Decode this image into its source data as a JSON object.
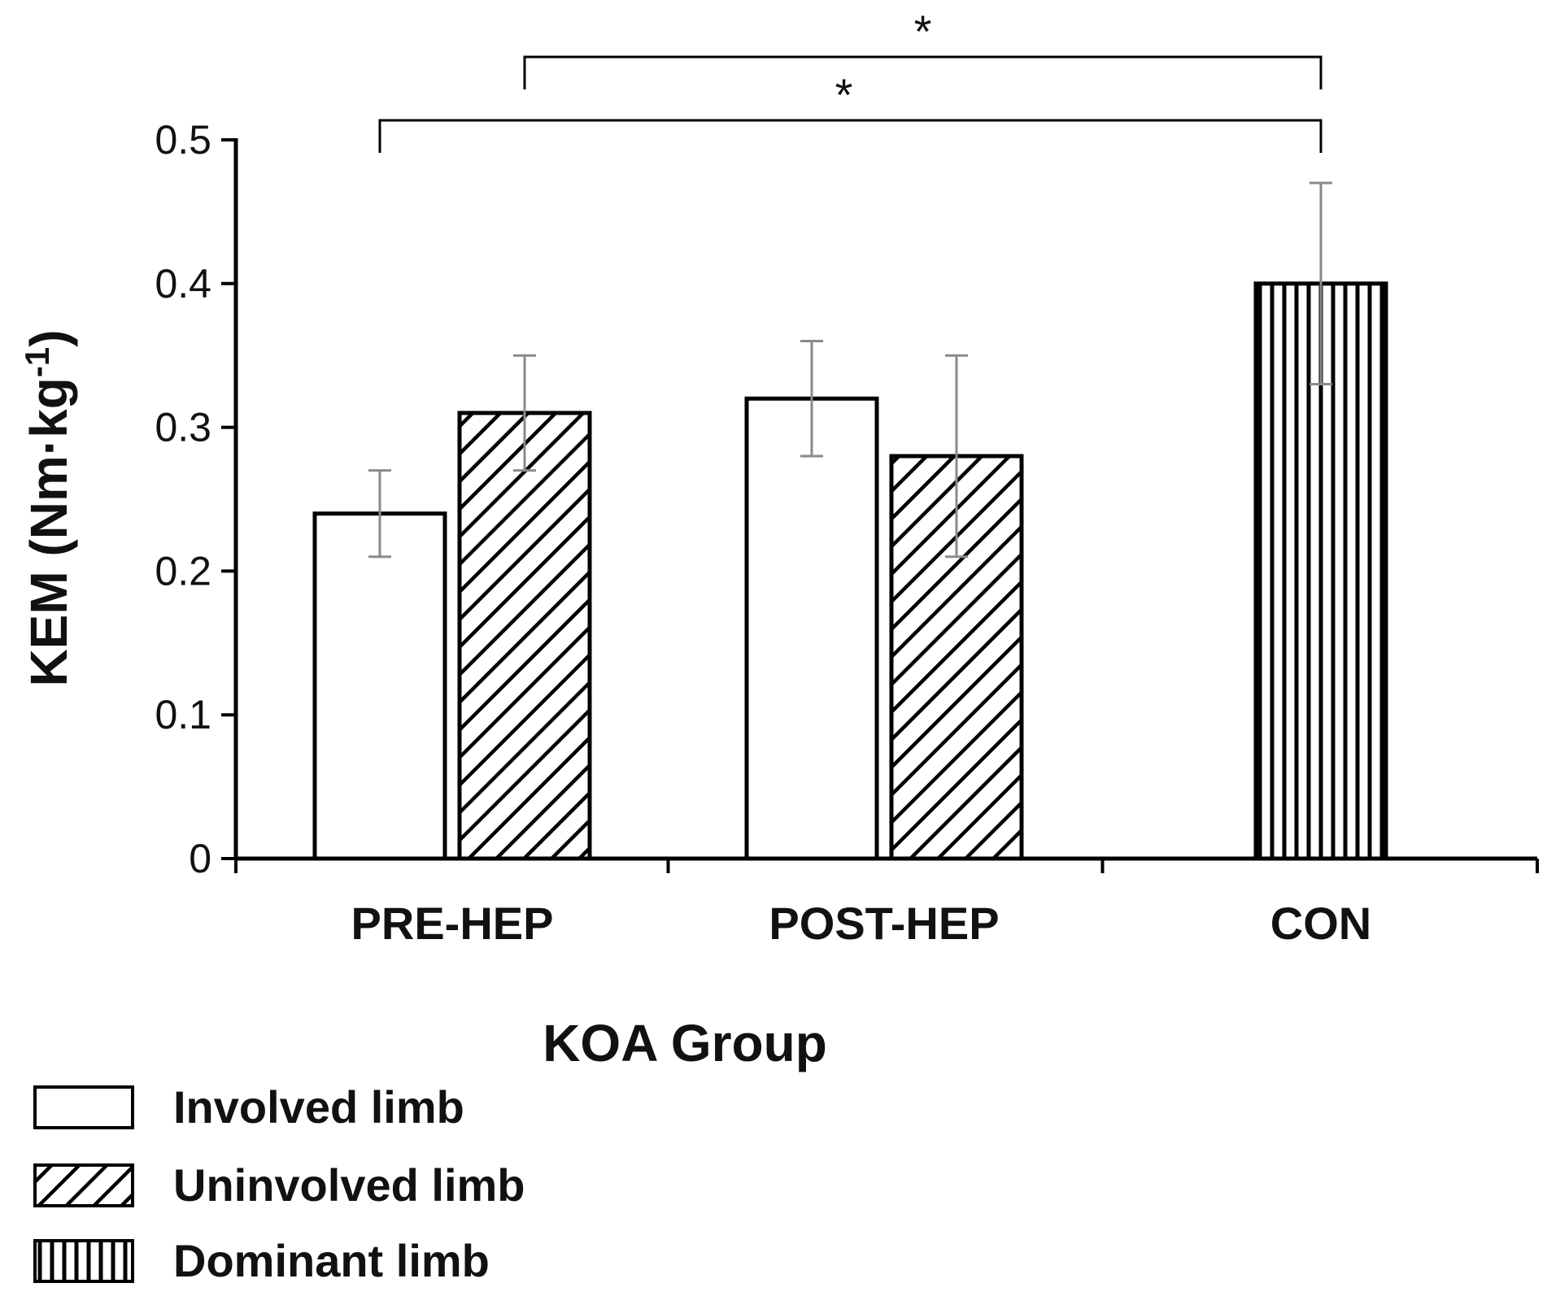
{
  "chart_data": {
    "type": "bar",
    "title": "",
    "xlabel": "KOA Group",
    "ylabel": "KEM (Nm·kg",
    "ylabel_superscript": "-1",
    "ylabel_close": ")",
    "ylim": [
      0,
      0.5
    ],
    "yticks": [
      0,
      0.1,
      0.2,
      0.3,
      0.4,
      0.5
    ],
    "ytick_labels": [
      "0",
      "0.1",
      "0.2",
      "0.3",
      "0.4",
      "0.5"
    ],
    "categories": [
      "PRE-HEP",
      "POST-HEP",
      "CON"
    ],
    "series": [
      {
        "name": "Involved limb",
        "pattern": "none",
        "values": [
          0.24,
          0.32,
          null
        ],
        "errors": [
          0.03,
          0.04,
          null
        ]
      },
      {
        "name": "Uninvolved limb",
        "pattern": "diagonal",
        "values": [
          0.31,
          0.28,
          null
        ],
        "errors": [
          0.04,
          0.07,
          null
        ]
      },
      {
        "name": "Dominant limb",
        "pattern": "vertical",
        "values": [
          null,
          null,
          0.4
        ],
        "errors": [
          null,
          null,
          0.07
        ]
      }
    ],
    "significance": [
      {
        "from": "PRE-HEP Involved limb",
        "to": "CON Dominant limb",
        "label": "*"
      },
      {
        "from": "PRE-HEP Uninvolved limb",
        "to": "CON Dominant limb",
        "label": "*"
      }
    ],
    "legend_position": "bottom-left",
    "grid": false
  }
}
